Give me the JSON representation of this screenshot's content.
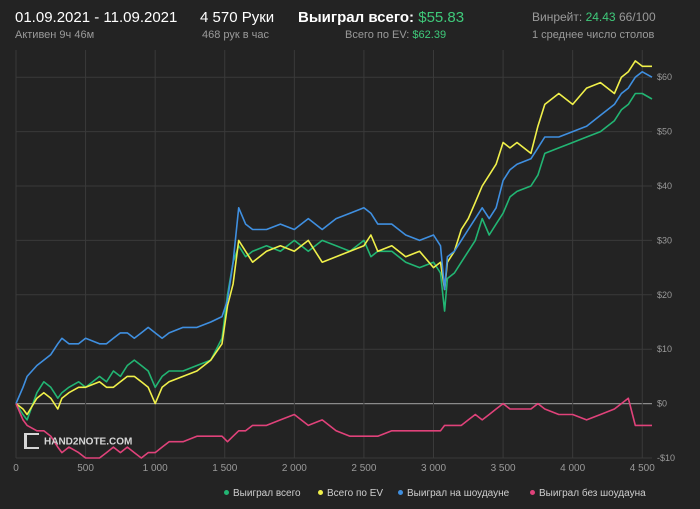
{
  "header": {
    "date_range": "01.09.2021 - 11.09.2021",
    "active": "Активен 9ч 46м",
    "hands": "4 570 Руки",
    "hands_rate": "468 рук в час",
    "won_label": "Выиграл всего:",
    "won_value": "$55.83",
    "ev_label": "Всего по EV:",
    "ev_value": "$62.39",
    "winrate_label": "Винрейт:",
    "winrate_value": "24.43",
    "winrate_extra": "66/100",
    "avg_tables": "1 среднее число столов"
  },
  "logo_text": "HAND2NOTE.COM",
  "colors": {
    "background": "#232323",
    "grid": "#3a3a3a",
    "zero_line": "#8a8a8a",
    "won": "#22b573",
    "ev": "#f0f04a",
    "showdown": "#3f8fe0",
    "non_showdown": "#e0427a",
    "accent_green": "#3fc97a"
  },
  "chart_data": {
    "type": "line",
    "xlim": [
      0,
      4570
    ],
    "ylim": [
      -10,
      65
    ],
    "x_ticks": [
      0,
      500,
      1000,
      1500,
      2000,
      2500,
      3000,
      3500,
      4000,
      4500
    ],
    "x_tick_labels": [
      "0",
      "500",
      "1 000",
      "1 500",
      "2 000",
      "2 500",
      "3 000",
      "3 500",
      "4 000",
      "4 500"
    ],
    "y_ticks": [
      -10,
      0,
      10,
      20,
      30,
      40,
      50,
      60
    ],
    "y_tick_labels": [
      "-$10",
      "$0",
      "$10",
      "$20",
      "$30",
      "$40",
      "$50",
      "$60"
    ],
    "grid": true,
    "legend_position": "bottom-right",
    "series": [
      {
        "name": "Выиграл всего",
        "color": "#22b573",
        "points": [
          [
            0,
            0
          ],
          [
            50,
            -2
          ],
          [
            80,
            -3
          ],
          [
            150,
            2
          ],
          [
            200,
            4
          ],
          [
            250,
            3
          ],
          [
            300,
            1
          ],
          [
            330,
            2
          ],
          [
            380,
            3
          ],
          [
            450,
            4
          ],
          [
            500,
            3
          ],
          [
            600,
            5
          ],
          [
            650,
            4
          ],
          [
            700,
            6
          ],
          [
            750,
            5
          ],
          [
            800,
            7
          ],
          [
            850,
            8
          ],
          [
            900,
            7
          ],
          [
            950,
            6
          ],
          [
            1000,
            3
          ],
          [
            1050,
            5
          ],
          [
            1100,
            6
          ],
          [
            1200,
            6
          ],
          [
            1300,
            7
          ],
          [
            1400,
            8
          ],
          [
            1480,
            12
          ],
          [
            1520,
            20
          ],
          [
            1560,
            26
          ],
          [
            1600,
            29
          ],
          [
            1650,
            27
          ],
          [
            1700,
            28
          ],
          [
            1800,
            29
          ],
          [
            1900,
            28
          ],
          [
            2000,
            30
          ],
          [
            2100,
            28
          ],
          [
            2200,
            30
          ],
          [
            2300,
            29
          ],
          [
            2400,
            28
          ],
          [
            2500,
            30
          ],
          [
            2550,
            27
          ],
          [
            2600,
            28
          ],
          [
            2700,
            28
          ],
          [
            2800,
            26
          ],
          [
            2900,
            25
          ],
          [
            3000,
            26
          ],
          [
            3050,
            24
          ],
          [
            3080,
            17
          ],
          [
            3100,
            23
          ],
          [
            3150,
            24
          ],
          [
            3200,
            26
          ],
          [
            3250,
            28
          ],
          [
            3300,
            30
          ],
          [
            3350,
            34
          ],
          [
            3400,
            31
          ],
          [
            3450,
            33
          ],
          [
            3500,
            35
          ],
          [
            3550,
            38
          ],
          [
            3600,
            39
          ],
          [
            3700,
            40
          ],
          [
            3750,
            42
          ],
          [
            3800,
            46
          ],
          [
            3900,
            47
          ],
          [
            4000,
            48
          ],
          [
            4100,
            49
          ],
          [
            4200,
            50
          ],
          [
            4300,
            52
          ],
          [
            4350,
            54
          ],
          [
            4400,
            55
          ],
          [
            4450,
            57
          ],
          [
            4500,
            57
          ],
          [
            4570,
            56
          ]
        ]
      },
      {
        "name": "Всего по EV",
        "color": "#f0f04a",
        "points": [
          [
            0,
            0
          ],
          [
            50,
            -1
          ],
          [
            80,
            -2
          ],
          [
            150,
            1
          ],
          [
            200,
            2
          ],
          [
            250,
            1
          ],
          [
            300,
            -1
          ],
          [
            330,
            1
          ],
          [
            380,
            2
          ],
          [
            450,
            3
          ],
          [
            500,
            3
          ],
          [
            600,
            4
          ],
          [
            650,
            3
          ],
          [
            700,
            3
          ],
          [
            750,
            4
          ],
          [
            800,
            5
          ],
          [
            850,
            5
          ],
          [
            900,
            4
          ],
          [
            950,
            3
          ],
          [
            1000,
            0
          ],
          [
            1050,
            3
          ],
          [
            1100,
            4
          ],
          [
            1200,
            5
          ],
          [
            1300,
            6
          ],
          [
            1400,
            8
          ],
          [
            1480,
            11
          ],
          [
            1520,
            18
          ],
          [
            1560,
            22
          ],
          [
            1600,
            30
          ],
          [
            1650,
            28
          ],
          [
            1700,
            26
          ],
          [
            1800,
            28
          ],
          [
            1900,
            29
          ],
          [
            2000,
            28
          ],
          [
            2100,
            30
          ],
          [
            2200,
            26
          ],
          [
            2300,
            27
          ],
          [
            2400,
            28
          ],
          [
            2500,
            29
          ],
          [
            2550,
            31
          ],
          [
            2600,
            28
          ],
          [
            2700,
            29
          ],
          [
            2800,
            27
          ],
          [
            2900,
            28
          ],
          [
            3000,
            25
          ],
          [
            3050,
            26
          ],
          [
            3080,
            21
          ],
          [
            3100,
            26
          ],
          [
            3150,
            28
          ],
          [
            3200,
            32
          ],
          [
            3250,
            34
          ],
          [
            3300,
            37
          ],
          [
            3350,
            40
          ],
          [
            3400,
            42
          ],
          [
            3450,
            44
          ],
          [
            3500,
            48
          ],
          [
            3550,
            47
          ],
          [
            3600,
            48
          ],
          [
            3700,
            46
          ],
          [
            3750,
            51
          ],
          [
            3800,
            55
          ],
          [
            3900,
            57
          ],
          [
            4000,
            55
          ],
          [
            4100,
            58
          ],
          [
            4200,
            59
          ],
          [
            4300,
            57
          ],
          [
            4350,
            60
          ],
          [
            4400,
            61
          ],
          [
            4450,
            63
          ],
          [
            4500,
            62
          ],
          [
            4570,
            62
          ]
        ]
      },
      {
        "name": "Выиграл на шоудауне",
        "color": "#3f8fe0",
        "points": [
          [
            0,
            0
          ],
          [
            50,
            3
          ],
          [
            80,
            5
          ],
          [
            150,
            7
          ],
          [
            200,
            8
          ],
          [
            250,
            9
          ],
          [
            300,
            11
          ],
          [
            330,
            12
          ],
          [
            380,
            11
          ],
          [
            450,
            11
          ],
          [
            500,
            12
          ],
          [
            600,
            11
          ],
          [
            650,
            11
          ],
          [
            700,
            12
          ],
          [
            750,
            13
          ],
          [
            800,
            13
          ],
          [
            850,
            12
          ],
          [
            900,
            13
          ],
          [
            950,
            14
          ],
          [
            1000,
            13
          ],
          [
            1050,
            12
          ],
          [
            1100,
            13
          ],
          [
            1200,
            14
          ],
          [
            1300,
            14
          ],
          [
            1400,
            15
          ],
          [
            1480,
            16
          ],
          [
            1520,
            19
          ],
          [
            1560,
            26
          ],
          [
            1600,
            36
          ],
          [
            1650,
            33
          ],
          [
            1700,
            32
          ],
          [
            1800,
            32
          ],
          [
            1900,
            33
          ],
          [
            2000,
            32
          ],
          [
            2100,
            34
          ],
          [
            2200,
            32
          ],
          [
            2300,
            34
          ],
          [
            2400,
            35
          ],
          [
            2500,
            36
          ],
          [
            2550,
            35
          ],
          [
            2600,
            33
          ],
          [
            2700,
            33
          ],
          [
            2800,
            31
          ],
          [
            2900,
            30
          ],
          [
            3000,
            31
          ],
          [
            3050,
            29
          ],
          [
            3080,
            21
          ],
          [
            3100,
            27
          ],
          [
            3150,
            28
          ],
          [
            3200,
            30
          ],
          [
            3250,
            32
          ],
          [
            3300,
            34
          ],
          [
            3350,
            36
          ],
          [
            3400,
            34
          ],
          [
            3450,
            36
          ],
          [
            3500,
            41
          ],
          [
            3550,
            43
          ],
          [
            3600,
            44
          ],
          [
            3700,
            45
          ],
          [
            3750,
            47
          ],
          [
            3800,
            49
          ],
          [
            3900,
            49
          ],
          [
            4000,
            50
          ],
          [
            4100,
            51
          ],
          [
            4200,
            53
          ],
          [
            4300,
            55
          ],
          [
            4350,
            57
          ],
          [
            4400,
            58
          ],
          [
            4450,
            60
          ],
          [
            4500,
            61
          ],
          [
            4570,
            60
          ]
        ]
      },
      {
        "name": "Выиграл без шоудауна",
        "color": "#e0427a",
        "points": [
          [
            0,
            0
          ],
          [
            50,
            -3
          ],
          [
            80,
            -4
          ],
          [
            150,
            -5
          ],
          [
            200,
            -5
          ],
          [
            250,
            -6
          ],
          [
            300,
            -8
          ],
          [
            330,
            -9
          ],
          [
            380,
            -8
          ],
          [
            450,
            -9
          ],
          [
            500,
            -10
          ],
          [
            600,
            -10
          ],
          [
            650,
            -9
          ],
          [
            700,
            -8
          ],
          [
            750,
            -9
          ],
          [
            800,
            -8
          ],
          [
            850,
            -9
          ],
          [
            900,
            -10
          ],
          [
            950,
            -9
          ],
          [
            1000,
            -9
          ],
          [
            1050,
            -8
          ],
          [
            1100,
            -7
          ],
          [
            1200,
            -7
          ],
          [
            1300,
            -6
          ],
          [
            1400,
            -6
          ],
          [
            1480,
            -6
          ],
          [
            1520,
            -7
          ],
          [
            1560,
            -6
          ],
          [
            1600,
            -5
          ],
          [
            1650,
            -5
          ],
          [
            1700,
            -4
          ],
          [
            1800,
            -4
          ],
          [
            1900,
            -3
          ],
          [
            2000,
            -2
          ],
          [
            2100,
            -4
          ],
          [
            2200,
            -3
          ],
          [
            2300,
            -5
          ],
          [
            2400,
            -6
          ],
          [
            2500,
            -6
          ],
          [
            2550,
            -6
          ],
          [
            2600,
            -6
          ],
          [
            2700,
            -5
          ],
          [
            2800,
            -5
          ],
          [
            2900,
            -5
          ],
          [
            3000,
            -5
          ],
          [
            3050,
            -5
          ],
          [
            3080,
            -4
          ],
          [
            3100,
            -4
          ],
          [
            3150,
            -4
          ],
          [
            3200,
            -4
          ],
          [
            3250,
            -3
          ],
          [
            3300,
            -2
          ],
          [
            3350,
            -3
          ],
          [
            3400,
            -2
          ],
          [
            3450,
            -1
          ],
          [
            3500,
            0
          ],
          [
            3550,
            -1
          ],
          [
            3600,
            -1
          ],
          [
            3700,
            -1
          ],
          [
            3750,
            0
          ],
          [
            3800,
            -1
          ],
          [
            3900,
            -2
          ],
          [
            4000,
            -2
          ],
          [
            4100,
            -3
          ],
          [
            4200,
            -2
          ],
          [
            4300,
            -1
          ],
          [
            4350,
            0
          ],
          [
            4400,
            1
          ],
          [
            4450,
            -4
          ],
          [
            4500,
            -4
          ],
          [
            4570,
            -4
          ]
        ]
      }
    ]
  }
}
